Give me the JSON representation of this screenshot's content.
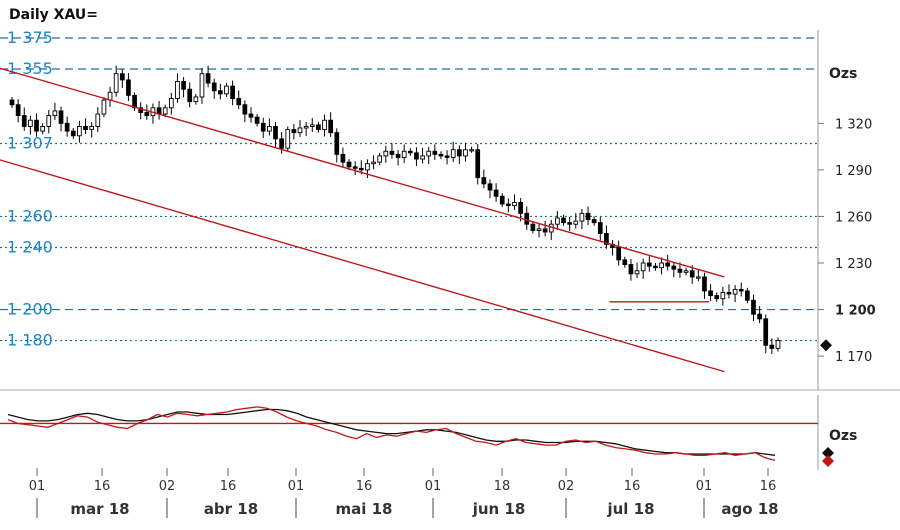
{
  "chart_data": {
    "type": "candlestick",
    "title": "Daily XAU=",
    "unit_label": "Ozs",
    "osc_unit_label": "Ozs",
    "right_axis": {
      "ylim": [
        1155,
        1385
      ],
      "ticks": [
        "1 320",
        "1 290",
        "1 260",
        "1 230",
        "1 200",
        "1 170"
      ],
      "tick_values": [
        1320,
        1290,
        1260,
        1230,
        1200,
        1170
      ],
      "bold_tick": "1 200"
    },
    "levels": [
      {
        "label": "1 375",
        "value": 1375,
        "style": "dashed"
      },
      {
        "label": "1 355",
        "value": 1355,
        "style": "dashed"
      },
      {
        "label": "1 307",
        "value": 1307,
        "style": "dotted"
      },
      {
        "label": "1 260",
        "value": 1260,
        "style": "dotted"
      },
      {
        "label": "1 240",
        "value": 1240,
        "style": "dotted"
      },
      {
        "label": "1 200",
        "value": 1200,
        "style": "dashed"
      },
      {
        "label": "1 180",
        "value": 1180,
        "style": "dotted"
      }
    ],
    "x_ticks": [
      "01",
      "16",
      "02",
      "16",
      "01",
      "16",
      "01",
      "18",
      "02",
      "16",
      "01",
      "16"
    ],
    "months": [
      "mar 18",
      "abr 18",
      "mai 18",
      "jun 18",
      "jul 18",
      "ago 18"
    ],
    "closes": [
      1332,
      1325,
      1318,
      1322,
      1315,
      1318,
      1325,
      1328,
      1320,
      1315,
      1312,
      1318,
      1316,
      1318,
      1326,
      1335,
      1340,
      1352,
      1348,
      1338,
      1330,
      1327,
      1325,
      1330,
      1326,
      1330,
      1336,
      1347,
      1342,
      1334,
      1337,
      1352,
      1346,
      1341,
      1339,
      1344,
      1336,
      1332,
      1326,
      1324,
      1320,
      1315,
      1318,
      1310,
      1304,
      1316,
      1314,
      1317,
      1318,
      1319,
      1316,
      1322,
      1314,
      1300,
      1295,
      1292,
      1291,
      1290,
      1294,
      1295,
      1299,
      1302,
      1300,
      1298,
      1302,
      1301,
      1297,
      1299,
      1302,
      1300,
      1299,
      1298,
      1303,
      1299,
      1303,
      1303,
      1285,
      1281,
      1277,
      1273,
      1268,
      1267,
      1269,
      1262,
      1255,
      1251,
      1252,
      1250,
      1255,
      1259,
      1256,
      1255,
      1257,
      1262,
      1258,
      1256,
      1249,
      1242,
      1240,
      1232,
      1229,
      1223,
      1225,
      1230,
      1228,
      1227,
      1230,
      1228,
      1226,
      1224,
      1225,
      1221,
      1221,
      1212,
      1209,
      1207,
      1211,
      1210,
      1213,
      1212,
      1206,
      1197,
      1194,
      1177,
      1175,
      1180
    ],
    "oscillator": {
      "series": [
        {
          "color": "#111111",
          "values": [
            62,
            60,
            58,
            57,
            57,
            58,
            60,
            62,
            63,
            62,
            60,
            58,
            57,
            57,
            58,
            60,
            62,
            64,
            64,
            63,
            62,
            62,
            62,
            63,
            64,
            65,
            66,
            66,
            65,
            63,
            60,
            58,
            56,
            54,
            52,
            50,
            49,
            48,
            47,
            47,
            48,
            49,
            50,
            50,
            49,
            48,
            46,
            44,
            42,
            41,
            41,
            42,
            42,
            41,
            40,
            40,
            40,
            41,
            41,
            41,
            40,
            39,
            37,
            35,
            34,
            33,
            32,
            32,
            31,
            31,
            31,
            31,
            31,
            31,
            31,
            32,
            31,
            30
          ]
        },
        {
          "color": "#c01818",
          "values": [
            58,
            55,
            54,
            53,
            52,
            55,
            58,
            61,
            60,
            56,
            54,
            52,
            51,
            55,
            58,
            62,
            60,
            63,
            62,
            61,
            62,
            63,
            64,
            66,
            67,
            68,
            67,
            64,
            60,
            57,
            55,
            53,
            50,
            48,
            45,
            43,
            47,
            44,
            46,
            45,
            47,
            49,
            48,
            50,
            51,
            47,
            44,
            41,
            40,
            38,
            41,
            43,
            40,
            39,
            38,
            38,
            41,
            42,
            40,
            41,
            38,
            36,
            35,
            34,
            32,
            31,
            31,
            32,
            31,
            30,
            30,
            31,
            32,
            30,
            31,
            32,
            28,
            26
          ]
        }
      ],
      "reference_level": 55
    },
    "trend_lines": [
      {
        "name": "channel-top",
        "from": [
          -0.16,
          1376
        ],
        "to": [
          0.93,
          1221
        ]
      },
      {
        "name": "channel-bottom",
        "from": [
          -0.2,
          1323
        ],
        "to": [
          0.93,
          1160
        ]
      },
      {
        "name": "support-1205",
        "from": [
          0.78,
          1205
        ],
        "to": [
          0.91,
          1205
        ]
      }
    ],
    "markers": [
      {
        "name": "price-marker",
        "value": 1177,
        "color": "#111111"
      }
    ]
  }
}
